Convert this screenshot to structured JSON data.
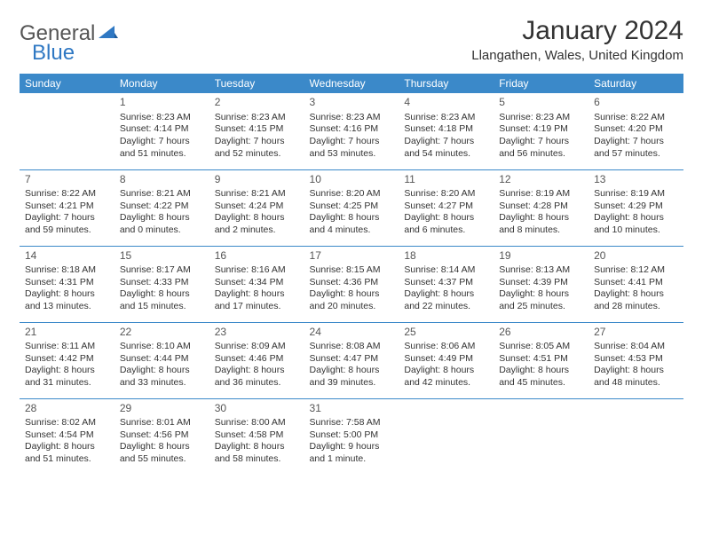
{
  "logo": {
    "general": "General",
    "blue": "Blue"
  },
  "title": "January 2024",
  "location": "Llangathen, Wales, United Kingdom",
  "colors": {
    "header_bg": "#3b89c9",
    "header_text": "#ffffff",
    "border": "#3b89c9",
    "logo_gray": "#555555",
    "logo_blue": "#2f78c3",
    "text": "#333333",
    "background": "#ffffff"
  },
  "weekdays": [
    "Sunday",
    "Monday",
    "Tuesday",
    "Wednesday",
    "Thursday",
    "Friday",
    "Saturday"
  ],
  "start_offset": 1,
  "days": [
    {
      "n": 1,
      "sr": "8:23 AM",
      "ss": "4:14 PM",
      "dl": "7 hours and 51 minutes."
    },
    {
      "n": 2,
      "sr": "8:23 AM",
      "ss": "4:15 PM",
      "dl": "7 hours and 52 minutes."
    },
    {
      "n": 3,
      "sr": "8:23 AM",
      "ss": "4:16 PM",
      "dl": "7 hours and 53 minutes."
    },
    {
      "n": 4,
      "sr": "8:23 AM",
      "ss": "4:18 PM",
      "dl": "7 hours and 54 minutes."
    },
    {
      "n": 5,
      "sr": "8:23 AM",
      "ss": "4:19 PM",
      "dl": "7 hours and 56 minutes."
    },
    {
      "n": 6,
      "sr": "8:22 AM",
      "ss": "4:20 PM",
      "dl": "7 hours and 57 minutes."
    },
    {
      "n": 7,
      "sr": "8:22 AM",
      "ss": "4:21 PM",
      "dl": "7 hours and 59 minutes."
    },
    {
      "n": 8,
      "sr": "8:21 AM",
      "ss": "4:22 PM",
      "dl": "8 hours and 0 minutes."
    },
    {
      "n": 9,
      "sr": "8:21 AM",
      "ss": "4:24 PM",
      "dl": "8 hours and 2 minutes."
    },
    {
      "n": 10,
      "sr": "8:20 AM",
      "ss": "4:25 PM",
      "dl": "8 hours and 4 minutes."
    },
    {
      "n": 11,
      "sr": "8:20 AM",
      "ss": "4:27 PM",
      "dl": "8 hours and 6 minutes."
    },
    {
      "n": 12,
      "sr": "8:19 AM",
      "ss": "4:28 PM",
      "dl": "8 hours and 8 minutes."
    },
    {
      "n": 13,
      "sr": "8:19 AM",
      "ss": "4:29 PM",
      "dl": "8 hours and 10 minutes."
    },
    {
      "n": 14,
      "sr": "8:18 AM",
      "ss": "4:31 PM",
      "dl": "8 hours and 13 minutes."
    },
    {
      "n": 15,
      "sr": "8:17 AM",
      "ss": "4:33 PM",
      "dl": "8 hours and 15 minutes."
    },
    {
      "n": 16,
      "sr": "8:16 AM",
      "ss": "4:34 PM",
      "dl": "8 hours and 17 minutes."
    },
    {
      "n": 17,
      "sr": "8:15 AM",
      "ss": "4:36 PM",
      "dl": "8 hours and 20 minutes."
    },
    {
      "n": 18,
      "sr": "8:14 AM",
      "ss": "4:37 PM",
      "dl": "8 hours and 22 minutes."
    },
    {
      "n": 19,
      "sr": "8:13 AM",
      "ss": "4:39 PM",
      "dl": "8 hours and 25 minutes."
    },
    {
      "n": 20,
      "sr": "8:12 AM",
      "ss": "4:41 PM",
      "dl": "8 hours and 28 minutes."
    },
    {
      "n": 21,
      "sr": "8:11 AM",
      "ss": "4:42 PM",
      "dl": "8 hours and 31 minutes."
    },
    {
      "n": 22,
      "sr": "8:10 AM",
      "ss": "4:44 PM",
      "dl": "8 hours and 33 minutes."
    },
    {
      "n": 23,
      "sr": "8:09 AM",
      "ss": "4:46 PM",
      "dl": "8 hours and 36 minutes."
    },
    {
      "n": 24,
      "sr": "8:08 AM",
      "ss": "4:47 PM",
      "dl": "8 hours and 39 minutes."
    },
    {
      "n": 25,
      "sr": "8:06 AM",
      "ss": "4:49 PM",
      "dl": "8 hours and 42 minutes."
    },
    {
      "n": 26,
      "sr": "8:05 AM",
      "ss": "4:51 PM",
      "dl": "8 hours and 45 minutes."
    },
    {
      "n": 27,
      "sr": "8:04 AM",
      "ss": "4:53 PM",
      "dl": "8 hours and 48 minutes."
    },
    {
      "n": 28,
      "sr": "8:02 AM",
      "ss": "4:54 PM",
      "dl": "8 hours and 51 minutes."
    },
    {
      "n": 29,
      "sr": "8:01 AM",
      "ss": "4:56 PM",
      "dl": "8 hours and 55 minutes."
    },
    {
      "n": 30,
      "sr": "8:00 AM",
      "ss": "4:58 PM",
      "dl": "8 hours and 58 minutes."
    },
    {
      "n": 31,
      "sr": "7:58 AM",
      "ss": "5:00 PM",
      "dl": "9 hours and 1 minute."
    }
  ],
  "labels": {
    "sunrise": "Sunrise:",
    "sunset": "Sunset:",
    "daylight": "Daylight:"
  }
}
